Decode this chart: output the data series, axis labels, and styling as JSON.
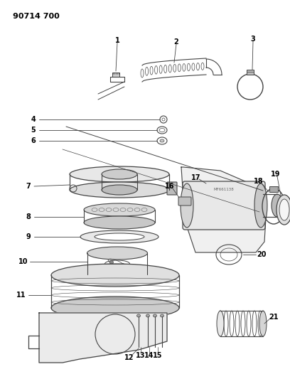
{
  "title_code": "90714 700",
  "background_color": "#ffffff",
  "line_color": "#444444",
  "label_color": "#000000",
  "figsize": [
    4.08,
    5.33
  ],
  "dpi": 100
}
